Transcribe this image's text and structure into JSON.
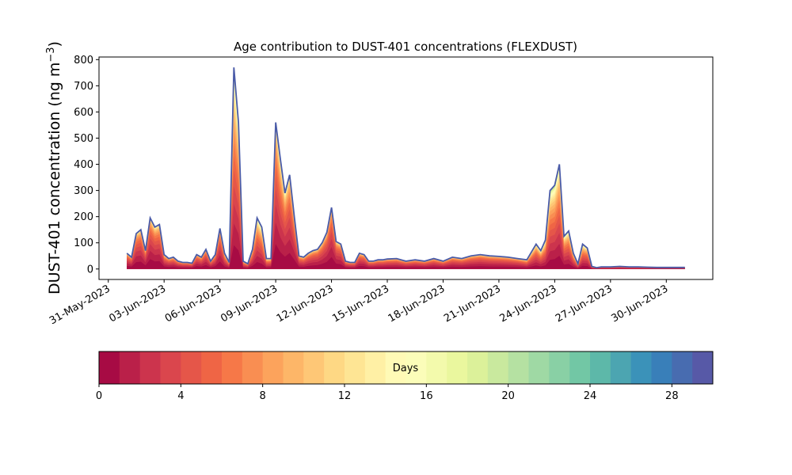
{
  "chart_data": {
    "type": "area",
    "subtype": "stacked",
    "title": "Age contribution to DUST-401 concentrations (FLEXDUST)",
    "ylabel_prefix": "DUST-401 concentration (ng m",
    "ylabel_sup": "−3",
    "ylabel_suffix": ")",
    "ylim": [
      -40,
      810
    ],
    "yticks": [
      0,
      100,
      200,
      300,
      400,
      500,
      600,
      700,
      800
    ],
    "xlim": [
      "2023-05-30T12:00",
      "2023-07-02T12:00"
    ],
    "xticks": [
      "2023-05-31",
      "2023-06-03",
      "2023-06-06",
      "2023-06-09",
      "2023-06-12",
      "2023-06-15",
      "2023-06-18",
      "2023-06-21",
      "2023-06-24",
      "2023-06-27",
      "2023-06-30"
    ],
    "xtick_labels": [
      "31-May-2023",
      "03-Jun-2023",
      "06-Jun-2023",
      "09-Jun-2023",
      "12-Jun-2023",
      "15-Jun-2023",
      "18-Jun-2023",
      "21-Jun-2023",
      "24-Jun-2023",
      "27-Jun-2023",
      "30-Jun-2023"
    ],
    "series_count": 30,
    "colormap": "Spectral",
    "x": [
      "2023-06-01T00:00",
      "2023-06-01T06:00",
      "2023-06-01T12:00",
      "2023-06-01T18:00",
      "2023-06-02T00:00",
      "2023-06-02T06:00",
      "2023-06-02T12:00",
      "2023-06-02T18:00",
      "2023-06-03T00:00",
      "2023-06-03T06:00",
      "2023-06-03T12:00",
      "2023-06-03T18:00",
      "2023-06-04T00:00",
      "2023-06-04T06:00",
      "2023-06-04T12:00",
      "2023-06-04T18:00",
      "2023-06-05T00:00",
      "2023-06-05T06:00",
      "2023-06-05T12:00",
      "2023-06-05T18:00",
      "2023-06-06T00:00",
      "2023-06-06T06:00",
      "2023-06-06T12:00",
      "2023-06-06T18:00",
      "2023-06-07T00:00",
      "2023-06-07T06:00",
      "2023-06-07T12:00",
      "2023-06-07T18:00",
      "2023-06-08T00:00",
      "2023-06-08T06:00",
      "2023-06-08T12:00",
      "2023-06-08T18:00",
      "2023-06-09T00:00",
      "2023-06-09T06:00",
      "2023-06-09T12:00",
      "2023-06-09T18:00",
      "2023-06-10T00:00",
      "2023-06-10T06:00",
      "2023-06-10T12:00",
      "2023-06-10T18:00",
      "2023-06-11T00:00",
      "2023-06-11T06:00",
      "2023-06-11T12:00",
      "2023-06-11T18:00",
      "2023-06-12T00:00",
      "2023-06-12T06:00",
      "2023-06-12T12:00",
      "2023-06-12T18:00",
      "2023-06-13T00:00",
      "2023-06-13T06:00",
      "2023-06-13T12:00",
      "2023-06-13T18:00",
      "2023-06-14T00:00",
      "2023-06-14T06:00",
      "2023-06-14T12:00",
      "2023-06-14T18:00",
      "2023-06-15T00:00",
      "2023-06-15T12:00",
      "2023-06-16T00:00",
      "2023-06-16T12:00",
      "2023-06-17T00:00",
      "2023-06-17T12:00",
      "2023-06-18T00:00",
      "2023-06-18T12:00",
      "2023-06-19T00:00",
      "2023-06-19T12:00",
      "2023-06-20T00:00",
      "2023-06-20T12:00",
      "2023-06-21T00:00",
      "2023-06-21T12:00",
      "2023-06-22T00:00",
      "2023-06-22T12:00",
      "2023-06-23T00:00",
      "2023-06-23T06:00",
      "2023-06-23T12:00",
      "2023-06-23T18:00",
      "2023-06-24T00:00",
      "2023-06-24T06:00",
      "2023-06-24T12:00",
      "2023-06-24T18:00",
      "2023-06-25T00:00",
      "2023-06-25T06:00",
      "2023-06-25T12:00",
      "2023-06-25T18:00",
      "2023-06-26T00:00",
      "2023-06-26T06:00",
      "2023-06-26T12:00",
      "2023-06-27T00:00",
      "2023-06-27T12:00",
      "2023-06-28T00:00",
      "2023-06-28T12:00",
      "2023-06-29T00:00",
      "2023-06-29T12:00",
      "2023-06-30T00:00",
      "2023-06-30T12:00",
      "2023-07-01T00:00"
    ],
    "total": [
      60,
      45,
      135,
      150,
      70,
      195,
      160,
      170,
      55,
      40,
      45,
      30,
      25,
      25,
      22,
      55,
      45,
      75,
      30,
      55,
      155,
      60,
      25,
      770,
      560,
      30,
      20,
      75,
      195,
      160,
      40,
      40,
      560,
      420,
      290,
      360,
      200,
      50,
      45,
      60,
      70,
      75,
      100,
      140,
      235,
      105,
      95,
      30,
      25,
      25,
      60,
      55,
      30,
      30,
      35,
      35,
      38,
      40,
      30,
      35,
      30,
      40,
      30,
      45,
      40,
      50,
      55,
      50,
      48,
      45,
      40,
      35,
      95,
      70,
      110,
      300,
      320,
      400,
      125,
      145,
      60,
      20,
      95,
      80,
      10,
      5,
      8,
      8,
      10,
      8,
      8,
      7,
      6,
      6,
      6,
      6
    ],
    "young_fraction": [
      0.05,
      0.05,
      0.1,
      0.15,
      0.1,
      0.1,
      0.2,
      0.2,
      0.2,
      0.1,
      0.1,
      0.05,
      0.05,
      0.05,
      0.05,
      0.05,
      0.05,
      0.05,
      0.05,
      0.1,
      0.15,
      0.3,
      0.3,
      0.55,
      0.5,
      0.3,
      0.2,
      0.3,
      0.45,
      0.5,
      0.4,
      0.3,
      0.25,
      0.35,
      0.3,
      0.25,
      0.2,
      0.15,
      0.15,
      0.1,
      0.1,
      0.1,
      0.1,
      0.1,
      0.1,
      0.1,
      0.1,
      0.1,
      0.05,
      0.05,
      0.1,
      0.1,
      0.1,
      0.1,
      0.1,
      0.1,
      0.1,
      0.1,
      0.1,
      0.1,
      0.1,
      0.1,
      0.1,
      0.1,
      0.1,
      0.1,
      0.1,
      0.1,
      0.1,
      0.1,
      0.1,
      0.3,
      0.4,
      0.45,
      0.5,
      0.55,
      0.55,
      0.5,
      0.45,
      0.45,
      0.4,
      0.45,
      0.5,
      0.4,
      0.3,
      0.2,
      0.2,
      0.2,
      0.2,
      0.2,
      0.2,
      0.2,
      0.2,
      0.2,
      0.2,
      0.2
    ],
    "colorbar": {
      "label": "Days",
      "range": [
        0,
        30
      ],
      "ticks": [
        0,
        4,
        8,
        12,
        16,
        20,
        24,
        28
      ],
      "tick_labels": [
        "0",
        "4",
        "8",
        "12",
        "16",
        "20",
        "24",
        "28"
      ],
      "bins": 30
    }
  }
}
